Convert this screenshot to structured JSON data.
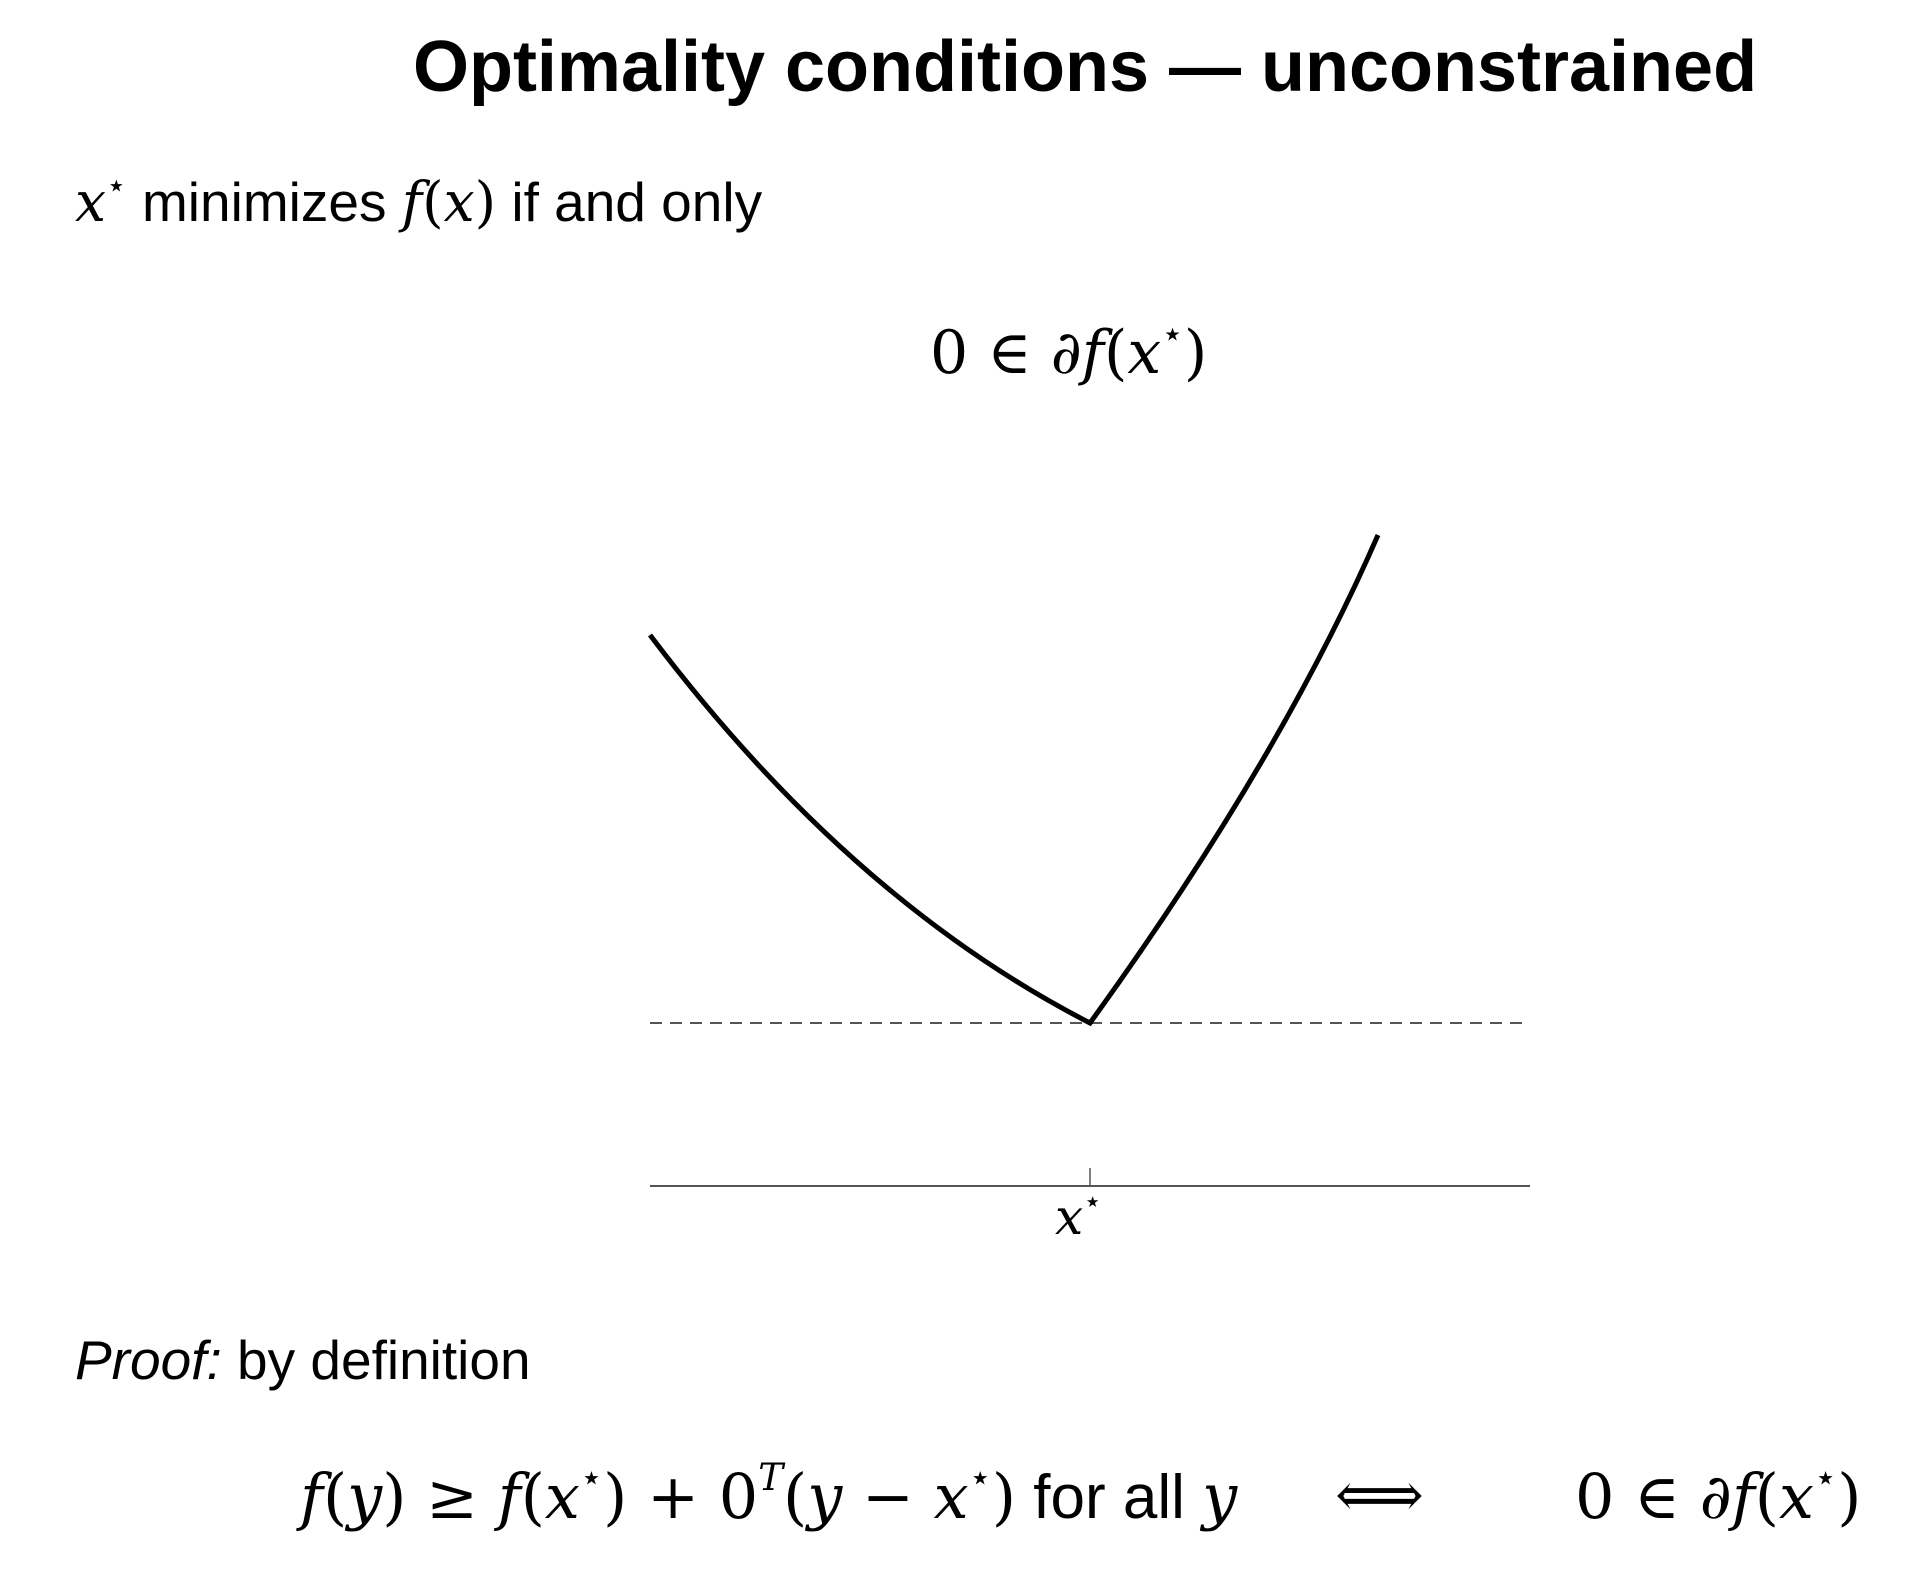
{
  "slide": {
    "title": "Optimality conditions — unconstrained"
  },
  "statement": {
    "var": "x",
    "star": "⋆",
    "text_minimizes": " minimizes ",
    "func": "f",
    "paren_open": "(",
    "func_arg": "x",
    "paren_close": ")",
    "text_if": " if and only"
  },
  "condition": {
    "zero": "0",
    "in": " ∈ ",
    "partial": "∂",
    "f": "f",
    "open": "(",
    "x": "x",
    "star": "⋆",
    "close": ")"
  },
  "figure": {
    "x_label_var": "x",
    "x_label_star": "⋆",
    "colors": {
      "curve": "#000000",
      "axis": "#555555",
      "dashed": "#555555"
    }
  },
  "proof": {
    "label": "Proof:",
    "text": " by definition",
    "lhs_f": "f",
    "lhs_open": "(",
    "lhs_y": "y",
    "lhs_close": ")",
    "geq": " ≥ ",
    "rhs_f": "f",
    "rhs_open": "(",
    "rhs_x": "x",
    "rhs_star": "⋆",
    "rhs_close": ")",
    "plus": " + ",
    "zero": "0",
    "transpose": "T",
    "open2": "(",
    "y2": "y",
    "minus": " − ",
    "x2": "x",
    "star2": "⋆",
    "close2": ")",
    "for_all": " for all ",
    "y3": "y",
    "iff": "⟺",
    "cond_zero": "0",
    "cond_in": " ∈ ",
    "cond_partial": "∂",
    "cond_f": "f",
    "cond_open": "(",
    "cond_x": "x",
    "cond_star": "⋆",
    "cond_close": ")"
  }
}
